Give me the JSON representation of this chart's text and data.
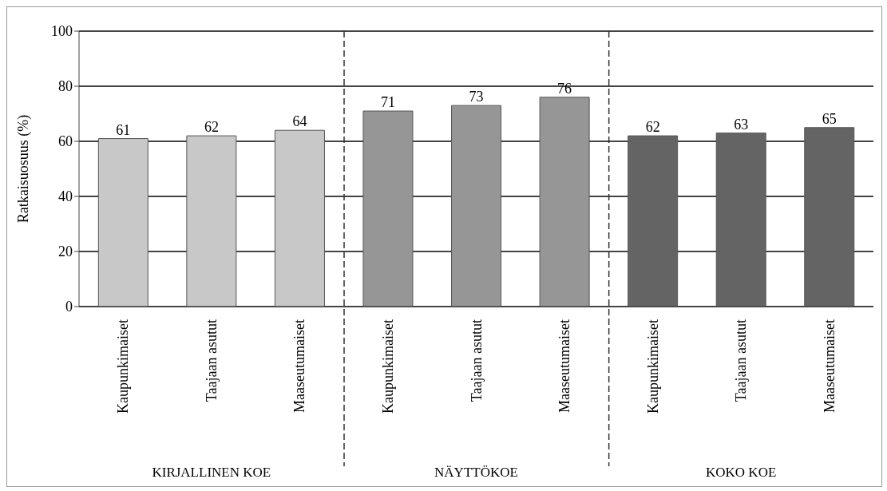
{
  "chart_data": {
    "type": "bar",
    "ylabel": "Ratkaisuosuus (%)",
    "categories": [
      "Kaupunkimaiset",
      "Taajaan asutut",
      "Maaseutumaiset",
      "Kaupunkimaiset",
      "Taajaan asutut",
      "Maaseutumaiset",
      "Kaupunkimaiset",
      "Taajaan asutut",
      "Maaseutumaiset"
    ],
    "values": [
      61,
      62,
      64,
      71,
      73,
      76,
      62,
      63,
      65
    ],
    "colors": [
      "#c8c8c8",
      "#c8c8c8",
      "#c8c8c8",
      "#969696",
      "#969696",
      "#969696",
      "#646464",
      "#646464",
      "#646464"
    ],
    "data_labels": true,
    "ylim": [
      0,
      100
    ],
    "yticks": [
      0,
      20,
      40,
      60,
      80,
      100
    ],
    "grid": "y",
    "annotations": [
      "KIRJALLINEN KOE",
      "NÄYTTÖKOE",
      "KOKO KOE"
    ]
  }
}
